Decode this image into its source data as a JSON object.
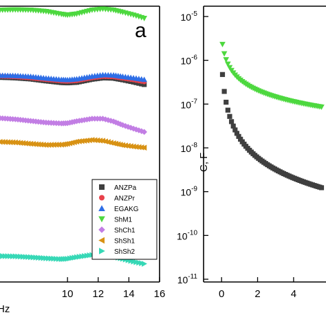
{
  "chart_data": [
    {
      "type": "scatter",
      "panel_label": "a",
      "xlabel_fragment": "Hz",
      "xlim": [
        5.6,
        16
      ],
      "x_ticks": [
        10,
        12,
        14,
        16
      ],
      "x_tick_labels": [
        "10",
        "12",
        "14",
        "16"
      ],
      "ylim": [
        0,
        100
      ],
      "legend_position": "right",
      "series": [
        {
          "name": "ANZPa",
          "marker": "square",
          "color": "#3f3f3f",
          "points": [
            [
              5.6,
              74.2
            ],
            [
              6.6,
              74.0
            ],
            [
              7.6,
              73.6
            ],
            [
              8.6,
              72.9
            ],
            [
              9.6,
              72.3
            ],
            [
              10.0,
              72.2
            ],
            [
              10.6,
              72.4
            ],
            [
              11.6,
              73.5
            ],
            [
              12.3,
              74.0
            ],
            [
              13.0,
              73.9
            ],
            [
              13.6,
              73.3
            ],
            [
              14.3,
              72.5
            ],
            [
              15.0,
              71.6
            ]
          ]
        },
        {
          "name": "ANZPr",
          "marker": "circle",
          "color": "#e8414b",
          "points": [
            [
              5.6,
              74.6
            ],
            [
              6.6,
              74.4
            ],
            [
              7.6,
              74.0
            ],
            [
              8.6,
              73.4
            ],
            [
              9.6,
              72.9
            ],
            [
              10.0,
              72.8
            ],
            [
              10.6,
              73.0
            ],
            [
              11.6,
              74.0
            ],
            [
              12.3,
              74.5
            ],
            [
              13.0,
              74.4
            ],
            [
              13.6,
              73.9
            ],
            [
              14.3,
              73.3
            ],
            [
              15.0,
              72.6
            ]
          ]
        },
        {
          "name": "EGAKG",
          "marker": "triangle-up",
          "color": "#2e6ee6",
          "points": [
            [
              5.6,
              74.9
            ],
            [
              6.6,
              74.8
            ],
            [
              7.6,
              74.5
            ],
            [
              8.6,
              73.9
            ],
            [
              9.6,
              73.4
            ],
            [
              10.0,
              73.3
            ],
            [
              10.6,
              73.6
            ],
            [
              11.6,
              74.6
            ],
            [
              12.3,
              75.1
            ],
            [
              13.0,
              75.0
            ],
            [
              13.6,
              74.5
            ],
            [
              14.3,
              74.0
            ],
            [
              15.0,
              73.4
            ]
          ]
        },
        {
          "name": "ShM1",
          "marker": "triangle-down",
          "color": "#4dd83f",
          "points": [
            [
              5.6,
              98.6
            ],
            [
              6.6,
              98.7
            ],
            [
              7.6,
              98.6
            ],
            [
              8.6,
              98.1
            ],
            [
              9.6,
              97.1
            ],
            [
              10.0,
              96.8
            ],
            [
              10.6,
              97.2
            ],
            [
              11.6,
              98.6
            ],
            [
              12.3,
              99.0
            ],
            [
              13.0,
              98.6
            ],
            [
              13.6,
              97.8
            ],
            [
              14.3,
              96.8
            ],
            [
              15.0,
              95.6
            ]
          ]
        },
        {
          "name": "ShCh1",
          "marker": "diamond",
          "color": "#c27ee4",
          "points": [
            [
              5.6,
              59.4
            ],
            [
              6.6,
              59.0
            ],
            [
              7.6,
              58.4
            ],
            [
              8.6,
              57.8
            ],
            [
              9.6,
              57.5
            ],
            [
              10.0,
              57.6
            ],
            [
              10.6,
              58.3
            ],
            [
              11.6,
              59.2
            ],
            [
              12.3,
              59.2
            ],
            [
              13.0,
              58.2
            ],
            [
              13.6,
              56.9
            ],
            [
              14.3,
              55.6
            ],
            [
              15.0,
              54.4
            ]
          ]
        },
        {
          "name": "ShSh1",
          "marker": "triangle-left",
          "color": "#d89214",
          "points": [
            [
              5.6,
              50.8
            ],
            [
              6.6,
              50.6
            ],
            [
              7.6,
              50.1
            ],
            [
              8.6,
              49.7
            ],
            [
              9.6,
              49.8
            ],
            [
              10.0,
              50.1
            ],
            [
              10.6,
              50.9
            ],
            [
              11.6,
              51.5
            ],
            [
              12.3,
              51.2
            ],
            [
              13.0,
              50.3
            ],
            [
              13.6,
              49.6
            ],
            [
              14.3,
              49.1
            ],
            [
              15.0,
              48.7
            ]
          ]
        },
        {
          "name": "ShSh2",
          "marker": "triangle-right",
          "color": "#36d8b6",
          "points": [
            [
              5.6,
              9.4
            ],
            [
              6.6,
              9.3
            ],
            [
              7.6,
              9.0
            ],
            [
              8.6,
              8.6
            ],
            [
              9.6,
              8.3
            ],
            [
              10.0,
              8.4
            ],
            [
              10.6,
              9.0
            ],
            [
              11.6,
              9.8
            ],
            [
              12.3,
              9.9
            ],
            [
              13.0,
              9.3
            ],
            [
              13.6,
              8.4
            ],
            [
              14.3,
              7.4
            ],
            [
              15.0,
              6.6
            ]
          ]
        }
      ]
    },
    {
      "type": "scatter",
      "ylabel": "C, F",
      "y_scale": "log",
      "ylim": [
        1e-11,
        1e-05
      ],
      "y_ticks": [
        {
          "base": "10",
          "exp": "-5",
          "value": 1e-05
        },
        {
          "base": "10",
          "exp": "-6",
          "value": 1e-06
        },
        {
          "base": "10",
          "exp": "-7",
          "value": 1e-07
        },
        {
          "base": "10",
          "exp": "-8",
          "value": 1e-08
        },
        {
          "base": "10",
          "exp": "-9",
          "value": 1e-09
        },
        {
          "base": "10",
          "exp": "-10",
          "value": 1e-10
        },
        {
          "base": "10",
          "exp": "-11",
          "value": 1e-11
        }
      ],
      "xlim": [
        -1,
        5.8
      ],
      "x_ticks": [
        0,
        2,
        4
      ],
      "x_tick_labels": [
        "0",
        "2",
        "4"
      ],
      "series": [
        {
          "marker": "square",
          "color": "#3f3f3f",
          "x": [
            0.05,
            0.15,
            0.25,
            0.35,
            0.45,
            0.55,
            0.65,
            0.75,
            0.85,
            0.95,
            1.05,
            1.15,
            1.25,
            1.35,
            1.45,
            1.55,
            1.65,
            1.75,
            1.85,
            1.95,
            2.05,
            2.15,
            2.25,
            2.35,
            2.45,
            2.55,
            2.65,
            2.75,
            2.85,
            2.95,
            3.05,
            3.15,
            3.25,
            3.35,
            3.45,
            3.55,
            3.65,
            3.75,
            3.85,
            3.95,
            4.05,
            4.15,
            4.25,
            4.35,
            4.45,
            4.55,
            4.65,
            4.75,
            4.85,
            4.95,
            5.05,
            5.15,
            5.25,
            5.35,
            5.45,
            5.55,
            5.65,
            5.75
          ],
          "c_at_x0": 1e-06,
          "decay_exponent": 1.59
        },
        {
          "marker": "triangle-down",
          "color": "#4dd83f",
          "x": [
            0.05,
            0.15,
            0.25,
            0.35,
            0.45,
            0.55,
            0.65,
            0.75,
            0.85,
            0.95,
            1.05,
            1.15,
            1.25,
            1.35,
            1.45,
            1.55,
            1.65,
            1.75,
            1.85,
            1.95,
            2.05,
            2.15,
            2.25,
            2.35,
            2.45,
            2.55,
            2.65,
            2.75,
            2.85,
            2.95,
            3.05,
            3.15,
            3.25,
            3.35,
            3.45,
            3.55,
            3.65,
            3.75,
            3.85,
            3.95,
            4.05,
            4.15,
            4.25,
            4.35,
            4.45,
            4.55,
            4.65,
            4.75,
            4.85,
            4.95,
            5.05,
            5.15,
            5.25,
            5.35,
            5.45,
            5.55,
            5.65,
            5.75
          ],
          "c_at_x0": 3.5e-06,
          "decay_exponent": 0.88
        }
      ]
    }
  ]
}
